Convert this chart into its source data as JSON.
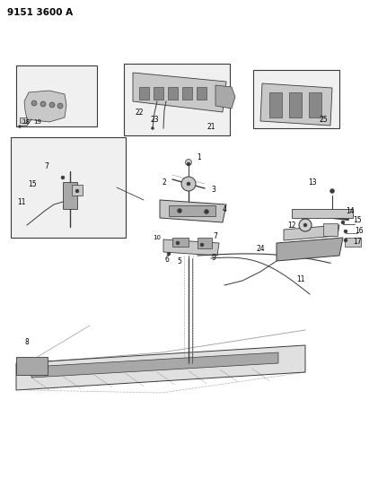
{
  "title": "9151 3600 A",
  "bg_color": "#ffffff",
  "lc": "#3a3a3a",
  "gray1": "#c8c8c8",
  "gray2": "#a8a8a8",
  "gray3": "#888888",
  "figsize": [
    4.11,
    5.33
  ],
  "dpi": 100
}
